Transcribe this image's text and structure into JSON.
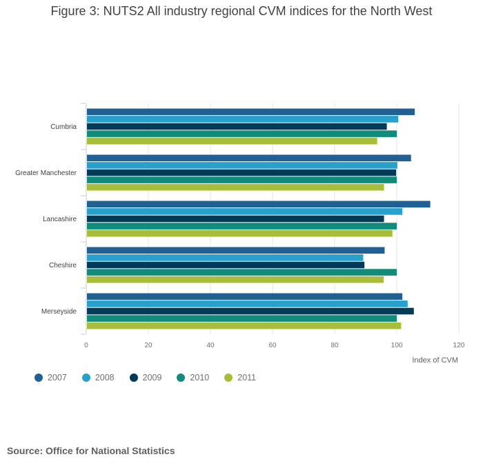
{
  "title": "Figure 3: NUTS2 All industry regional CVM indices for the North West",
  "source": "Source: Office for National Statistics",
  "chart_data": {
    "type": "bar",
    "orientation": "horizontal",
    "title": "Figure 3: NUTS2 All industry regional CVM indices for the North West",
    "xlabel": "Index of CVM",
    "ylabel": "",
    "xlim": [
      0,
      120
    ],
    "xticks": [
      0,
      20,
      40,
      60,
      80,
      100,
      120
    ],
    "grid": true,
    "legend_position": "bottom-left",
    "categories": [
      "Cumbria",
      "Greater Manchester",
      "Lancashire",
      "Cheshire",
      "Merseyside"
    ],
    "series": [
      {
        "name": "2007",
        "color": "#206095",
        "values": [
          105.8,
          104.6,
          110.8,
          96.1,
          101.8
        ]
      },
      {
        "name": "2008",
        "color": "#27a0cc",
        "values": [
          100.5,
          100.2,
          101.8,
          89.2,
          103.5
        ]
      },
      {
        "name": "2009",
        "color": "#003c57",
        "values": [
          96.8,
          99.8,
          95.9,
          89.6,
          105.5
        ]
      },
      {
        "name": "2010",
        "color": "#118c7b",
        "values": [
          100.0,
          100.0,
          100.0,
          100.0,
          100.0
        ]
      },
      {
        "name": "2011",
        "color": "#a8bd3a",
        "values": [
          93.7,
          95.9,
          98.6,
          95.8,
          101.4
        ]
      }
    ]
  }
}
